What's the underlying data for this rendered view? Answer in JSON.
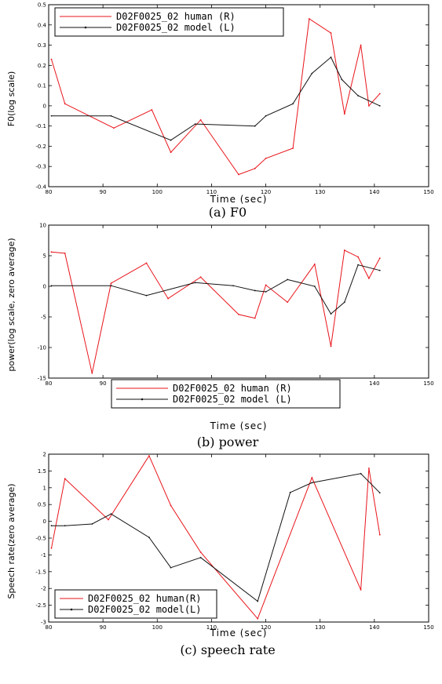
{
  "colors": {
    "human": "#e8141b",
    "model": "#111111"
  },
  "chart_data": [
    {
      "type": "line",
      "caption": "(a) F0",
      "xlabel": "Time (sec)",
      "ylabel": "F0(log scale)",
      "xlim": [
        80,
        150
      ],
      "ylim": [
        -0.4,
        0.5
      ],
      "xticks": [
        80,
        90,
        100,
        110,
        120,
        130,
        140,
        150
      ],
      "xtick_labels": [
        "80",
        "90",
        "100",
        "110",
        "120",
        "130",
        "140",
        "150"
      ],
      "yticks": [
        -0.4,
        -0.3,
        -0.2,
        -0.1,
        0,
        0.1,
        0.2,
        0.3,
        0.4,
        0.5
      ],
      "ytick_labels": [
        "-0.4",
        "-0.3",
        "-0.2",
        "-0.1",
        "0",
        "0.1",
        "0.2",
        "0.3",
        "0.4",
        "0.5"
      ],
      "legend_placement": "top-left",
      "series": [
        {
          "name": "D02F0025_02 human (R)",
          "color": "human",
          "x": [
            80.5,
            83,
            92,
            99,
            102.5,
            108,
            115,
            118,
            120,
            125,
            128,
            132,
            134.5,
            137.5,
            139,
            141
          ],
          "y": [
            0.23,
            0.01,
            -0.11,
            -0.02,
            -0.23,
            -0.07,
            -0.34,
            -0.31,
            -0.26,
            -0.21,
            0.43,
            0.36,
            -0.04,
            0.3,
            0.0,
            0.06
          ]
        },
        {
          "name": "D02F0025_02 model (L)",
          "color": "model",
          "x": [
            80.5,
            91.5,
            102.5,
            107,
            118,
            120,
            125,
            128.5,
            132,
            134,
            137,
            141
          ],
          "y": [
            -0.05,
            -0.05,
            -0.17,
            -0.09,
            -0.1,
            -0.05,
            0.01,
            0.16,
            0.24,
            0.13,
            0.05,
            0.0
          ]
        }
      ]
    },
    {
      "type": "line",
      "caption": "(b) power",
      "xlabel": "Time (sec)",
      "ylabel": "power(log scale, zero average)",
      "xlim": [
        80,
        150
      ],
      "ylim": [
        -15,
        10
      ],
      "xticks": [
        80,
        90,
        100,
        110,
        120,
        130,
        140,
        150
      ],
      "xtick_labels": [
        "80",
        "90",
        "100",
        "110",
        "120",
        "130",
        "140",
        "150"
      ],
      "yticks": [
        -15,
        -10,
        -5,
        0,
        5,
        10
      ],
      "ytick_labels": [
        "-15",
        "-10",
        "-5",
        "0",
        "5",
        "10"
      ],
      "legend_placement": "bottom-center",
      "series": [
        {
          "name": "D02F0025_02 human (R)",
          "color": "human",
          "x": [
            80.5,
            83,
            88,
            91.5,
            98,
            102,
            108,
            115,
            118,
            120,
            124,
            129,
            132,
            134.5,
            137,
            139,
            141
          ],
          "y": [
            5.6,
            5.4,
            -14.2,
            0.5,
            3.8,
            -2.0,
            1.5,
            -4.6,
            -5.2,
            0.2,
            -2.6,
            3.6,
            -9.8,
            5.9,
            4.8,
            1.3,
            4.6
          ]
        },
        {
          "name": "D02F0025_02 model (L)",
          "color": "model",
          "x": [
            80.5,
            91.5,
            98,
            107,
            114,
            118,
            120,
            124,
            129,
            132,
            134.5,
            137,
            141
          ],
          "y": [
            0.1,
            0.1,
            -1.5,
            0.6,
            0.1,
            -0.7,
            -0.9,
            1.1,
            0.0,
            -4.5,
            -2.6,
            3.5,
            2.6
          ]
        }
      ]
    },
    {
      "type": "line",
      "caption": "(c) speech rate",
      "xlabel": "Time (sec)",
      "ylabel": "Speech rate(zero average)",
      "xlim": [
        80,
        150
      ],
      "ylim": [
        -3,
        2
      ],
      "xticks": [
        80,
        90,
        100,
        110,
        120,
        130,
        140,
        150
      ],
      "xtick_labels": [
        "80",
        "90",
        "100",
        "110",
        "120",
        "130",
        "140",
        "150"
      ],
      "yticks": [
        -3,
        -2.5,
        -2,
        -1.5,
        -1,
        -0.5,
        0,
        0.5,
        1,
        1.5,
        2
      ],
      "ytick_labels": [
        "-3",
        "-2.5",
        "-2",
        "-1.5",
        "-1",
        "-0.5",
        "0",
        "0.5",
        "1",
        "1.5",
        "2"
      ],
      "legend_placement": "bottom-left",
      "series": [
        {
          "name": "D02F0025_02 human(R)",
          "color": "human",
          "x": [
            80.5,
            83,
            91,
            98.5,
            102.5,
            108,
            118.5,
            128.5,
            137.5,
            139,
            141
          ],
          "y": [
            -0.8,
            1.27,
            0.05,
            1.95,
            0.47,
            -0.92,
            -2.9,
            1.3,
            -2.04,
            1.58,
            -0.4
          ]
        },
        {
          "name": "D02F0025_02 model(L)",
          "color": "model",
          "x": [
            80.5,
            83,
            88,
            91.5,
            98.5,
            102.5,
            108,
            118.5,
            124.5,
            128.5,
            137.5,
            141
          ],
          "y": [
            -0.13,
            -0.13,
            -0.08,
            0.22,
            -0.48,
            -1.38,
            -1.08,
            -2.38,
            0.86,
            1.15,
            1.42,
            0.85
          ]
        }
      ]
    }
  ]
}
